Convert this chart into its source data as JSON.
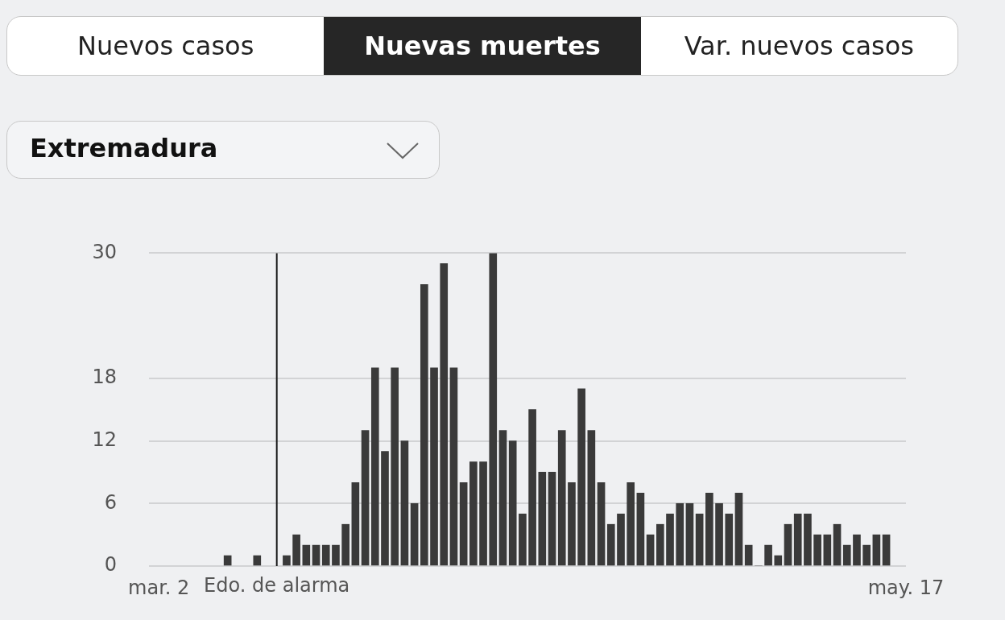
{
  "chart_data": {
    "type": "bar",
    "title": "Nuevas muertes",
    "subtitle": "Extremadura",
    "annotations": [
      "Nuevos casos",
      "Var. nuevos casos"
    ],
    "x": [
      "--03-09",
      "--03-12",
      "--03-15",
      "--03-16",
      "--03-17",
      "--03-18",
      "--03-19",
      "--03-20",
      "--03-21",
      "--03-22",
      "--03-23",
      "--03-24",
      "--03-25",
      "--03-26",
      "--03-27",
      "--03-28",
      "--03-29",
      "--03-30",
      "--03-31",
      "--04-01",
      "--04-02",
      "--04-03",
      "--04-04",
      "--04-05",
      "--04-06",
      "--04-07",
      "--04-08",
      "--04-09",
      "--04-10",
      "--04-11",
      "--04-12",
      "--04-13",
      "--04-14",
      "--04-15",
      "--04-16",
      "--04-17",
      "--04-18",
      "--04-19",
      "--04-20",
      "--04-21",
      "--04-22",
      "--04-23",
      "--04-24",
      "--04-25",
      "--04-26",
      "--04-27",
      "--04-28",
      "--04-29",
      "--04-30",
      "--05-01",
      "--05-02",
      "--05-03",
      "--05-04",
      "--05-05",
      "--05-06",
      "--05-07",
      "--05-08",
      "--05-09",
      "--05-10",
      "--05-11",
      "--05-12",
      "--05-13",
      "--05-14",
      "--05-15"
    ],
    "values": [
      1,
      1,
      1,
      3,
      2,
      2,
      2,
      2,
      4,
      8,
      13,
      19,
      11,
      19,
      12,
      6,
      27,
      19,
      29,
      19,
      8,
      10,
      10,
      30,
      13,
      12,
      5,
      15,
      9,
      9,
      13,
      8,
      17,
      13,
      8,
      4,
      5,
      8,
      7,
      3,
      4,
      5,
      6,
      6,
      5,
      7,
      6,
      5,
      7,
      2,
      0,
      2,
      1,
      4,
      5,
      5,
      3,
      3,
      4,
      2,
      3,
      2,
      3,
      3
    ],
    "color": "#3a3a3a",
    "xlim": [
      "--03-01",
      "--05-17"
    ],
    "xticks": [
      {
        "value": "--03-02",
        "label": "mar. 2"
      },
      {
        "value": "--05-17",
        "label": "may. 17"
      }
    ],
    "ylim": [
      0,
      30
    ],
    "yticks": [
      0,
      6,
      12,
      18,
      30
    ],
    "grid": "y",
    "legend": false,
    "ref_lines": [
      {
        "axis": "x",
        "value": "--03-14",
        "label": "Edo. de alarma",
        "color": "#1a1a1a"
      }
    ]
  }
}
